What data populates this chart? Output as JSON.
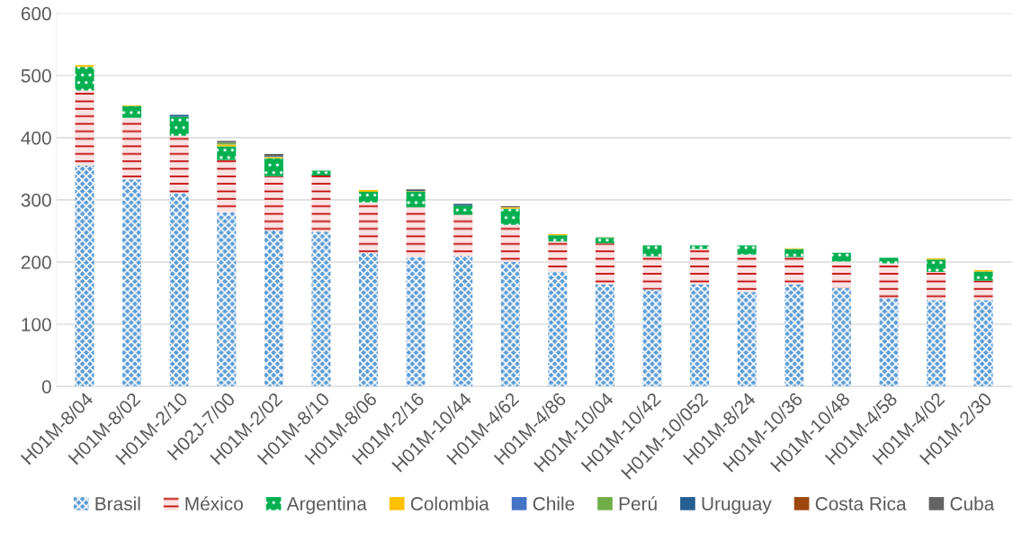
{
  "chart_data": {
    "type": "bar",
    "stacked": true,
    "categories": [
      "H01M-8/04",
      "H01M-8/02",
      "H01M-2/10",
      "H02J-7/00",
      "H01M-2/02",
      "H01M-8/10",
      "H01M-8/06",
      "H01M-2/16",
      "H01M-10/44",
      "H01M-4/62",
      "H01M-4/86",
      "H01M-10/04",
      "H01M-10/42",
      "H01M-10/052",
      "H01M-8/24",
      "H01M-10/36",
      "H01M-10/48",
      "H01M-4/58",
      "H01M-4/02",
      "H01M-2/30"
    ],
    "series": [
      {
        "name": "Brasil",
        "color": "#5b9bd5",
        "values": [
          355,
          333,
          311,
          280,
          251,
          249,
          215,
          208,
          210,
          200,
          184,
          164,
          156,
          164,
          152,
          164,
          158,
          142,
          139,
          139
        ]
      },
      {
        "name": "México",
        "color": "#c00000",
        "values": [
          121,
          99,
          92,
          84,
          87,
          90,
          81,
          80,
          66,
          60,
          49,
          66,
          53,
          57,
          60,
          44,
          43,
          56,
          45,
          31
        ]
      },
      {
        "name": "Argentina",
        "color": "#00b050",
        "values": [
          38,
          19,
          31,
          22,
          29,
          8,
          17,
          25,
          15,
          26,
          10,
          9,
          18,
          6,
          15,
          13,
          14,
          9,
          20,
          15
        ]
      },
      {
        "name": "Colombia",
        "color": "#ffc000",
        "values": [
          3,
          1,
          0,
          3,
          2,
          0,
          3,
          1,
          null,
          2,
          2,
          0,
          0,
          0,
          0,
          1,
          0,
          0,
          2,
          2
        ]
      },
      {
        "name": "Chile",
        "color": "#4472c4",
        "values": [
          0,
          0,
          0,
          0,
          1,
          0,
          0,
          0,
          0,
          0,
          0,
          0,
          0,
          0,
          0,
          0,
          0,
          0,
          0,
          0
        ]
      },
      {
        "name": "Perú",
        "color": "#70ad47",
        "values": [
          0,
          0,
          0,
          3,
          0,
          0,
          0,
          0,
          0,
          0,
          0,
          1,
          0,
          0,
          0,
          0,
          0,
          0,
          0,
          0
        ]
      },
      {
        "name": "Uruguay",
        "color": "#255e91",
        "values": [
          0,
          0,
          3,
          0,
          1,
          0,
          0,
          2,
          2,
          0,
          0,
          0,
          0,
          0,
          0,
          0,
          0,
          0,
          0,
          0
        ]
      },
      {
        "name": "Costa Rica",
        "color": "#9e480e",
        "values": [
          0,
          0,
          0,
          0,
          0,
          0,
          0,
          0,
          0,
          0,
          0,
          0,
          0,
          0,
          0,
          0,
          0,
          0,
          0,
          0
        ]
      },
      {
        "name": "Cuba",
        "color": "#636363",
        "values": [
          0,
          0,
          0,
          3,
          3,
          0,
          0,
          1,
          1,
          2,
          0,
          0,
          0,
          0,
          0,
          0,
          0,
          0,
          0,
          0
        ]
      }
    ],
    "ylim": [
      0,
      600
    ],
    "yticks": [
      0,
      100,
      200,
      300,
      400,
      500,
      600
    ],
    "grid": "y",
    "legend": "bottom"
  }
}
